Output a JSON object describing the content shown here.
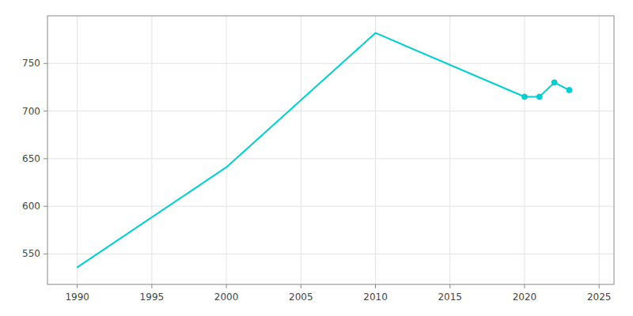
{
  "chart_data": {
    "type": "line",
    "x": [
      1990,
      2000,
      2010,
      2020,
      2021,
      2022,
      2023
    ],
    "series": [
      {
        "type": "line",
        "color": "#00CED1",
        "values": [
          536,
          641,
          782,
          715,
          715,
          730,
          722
        ]
      },
      {
        "type": "scatter",
        "marker": "circle",
        "color": "#00CED1",
        "values": [
          null,
          null,
          null,
          715,
          715,
          730,
          722
        ]
      }
    ],
    "xlim": [
      1988,
      2026
    ],
    "ylim": [
      518,
      800
    ],
    "xticks": [
      1990,
      1995,
      2000,
      2005,
      2010,
      2015,
      2020,
      2025
    ],
    "yticks": [
      550,
      600,
      650,
      700,
      750
    ],
    "grid": true
  }
}
